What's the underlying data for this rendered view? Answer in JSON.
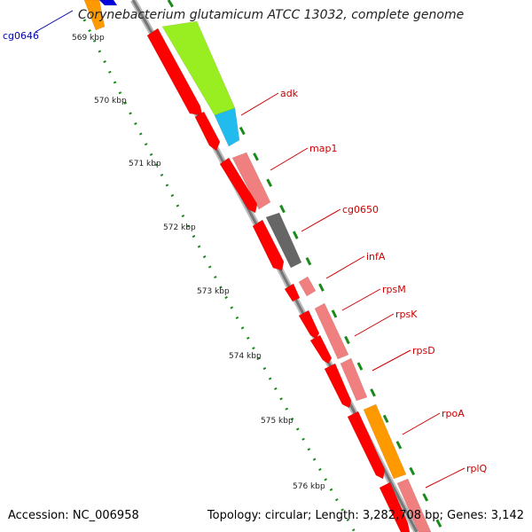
{
  "title": "Corynebacterium glutamicum ATCC 13032, complete genome",
  "footer": {
    "accession": "Accession: NC_006958",
    "summary": "Topology: circular; Length: 3,282,708 bp; Genes: 3,142"
  },
  "colors": {
    "cds": "#ff0000",
    "cds_light": "#f08080",
    "trna_green": "#99ee22",
    "cyan": "#22bbee",
    "gray": "#666666",
    "orange": "#ff9900",
    "blue": "#0000dd",
    "tick_green": "#1a8a1a",
    "label_red": "#cc0000",
    "label_blue": "#0000aa"
  },
  "scale_ticks": [
    "569 kbp",
    "570 kbp",
    "571 kbp",
    "572 kbp",
    "573 kbp",
    "574 kbp",
    "575 kbp",
    "576 kbp"
  ],
  "gene_labels": [
    {
      "text": "cg0646",
      "color": "blue"
    },
    {
      "text": "adk",
      "color": "red"
    },
    {
      "text": "map1",
      "color": "red"
    },
    {
      "text": "cg0650",
      "color": "red"
    },
    {
      "text": "infA",
      "color": "red"
    },
    {
      "text": "rpsM",
      "color": "red"
    },
    {
      "text": "rpsK",
      "color": "red"
    },
    {
      "text": "rpsD",
      "color": "red"
    },
    {
      "text": "rpoA",
      "color": "red"
    },
    {
      "text": "rplQ",
      "color": "red"
    }
  ]
}
